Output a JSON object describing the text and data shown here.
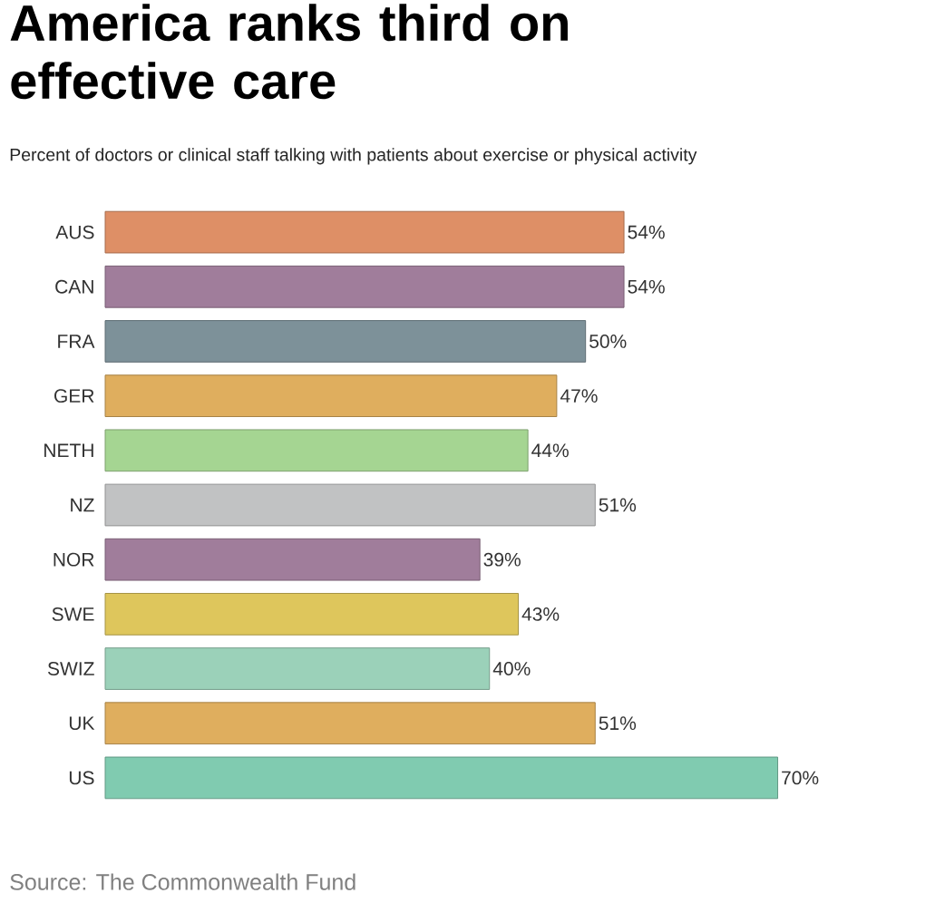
{
  "chart_data": {
    "type": "bar",
    "orientation": "horizontal",
    "title": "America ranks third on effective care",
    "subtitle": "Percent of doctors or clinical staff talking with patients about exercise or physical activity",
    "categories": [
      "AUS",
      "CAN",
      "FRA",
      "GER",
      "NETH",
      "NZ",
      "NOR",
      "SWE",
      "SWIZ",
      "UK",
      "US"
    ],
    "values": [
      54,
      54,
      50,
      47,
      44,
      51,
      39,
      43,
      40,
      51,
      70
    ],
    "value_labels": [
      "54%",
      "54%",
      "50%",
      "47%",
      "44%",
      "51%",
      "39%",
      "43%",
      "40%",
      "51%",
      "70%"
    ],
    "colors": [
      "#de8f66",
      "#a07d9b",
      "#7d9199",
      "#dfae5e",
      "#a5d592",
      "#c1c2c3",
      "#a07d9b",
      "#dec65c",
      "#9bd1b9",
      "#dfae5e",
      "#80cbb0"
    ],
    "annotations": [
      "Source: The Commonwealth Fund"
    ]
  }
}
